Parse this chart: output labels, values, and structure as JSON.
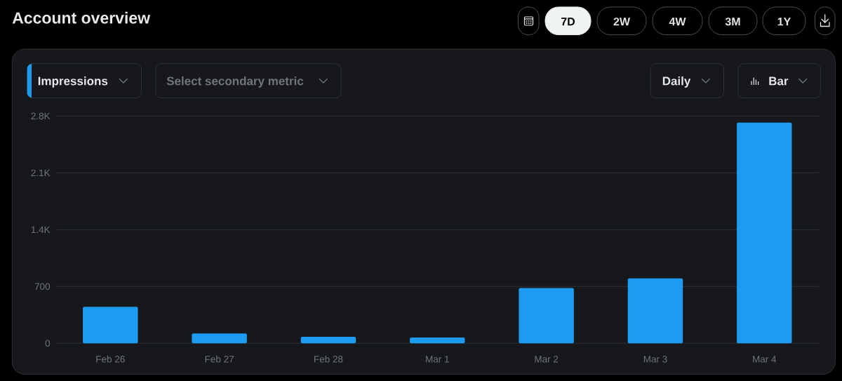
{
  "chart_data": {
    "type": "bar",
    "title": "Account overview",
    "categories": [
      "Feb 26",
      "Feb 27",
      "Feb 28",
      "Mar 1",
      "Mar 2",
      "Mar 3",
      "Mar 4"
    ],
    "values": [
      450,
      120,
      80,
      70,
      680,
      800,
      2720
    ],
    "color": "#1d9bf0",
    "ylim": [
      0,
      2800
    ],
    "yticks": [
      0,
      700,
      {
        "value": 1400,
        "label": "1.4K"
      },
      {
        "value": 2100,
        "label": "2.1K"
      },
      {
        "value": 2800,
        "label": "2.8K"
      }
    ],
    "grid": "y",
    "annotations": [
      "7D",
      "2W",
      "4W",
      "3M",
      "1Y",
      "Impressions",
      "Select secondary metric",
      "Daily",
      "Bar"
    ]
  }
}
